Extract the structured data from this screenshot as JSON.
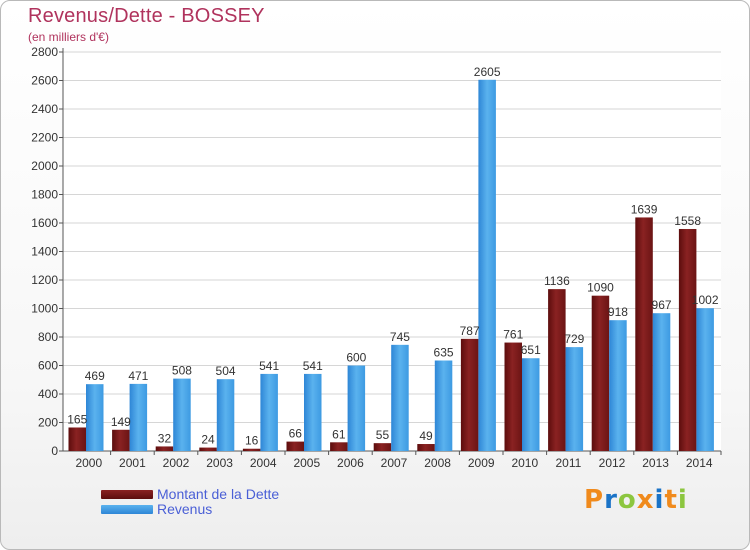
{
  "header": {
    "title": "Revenus/Dette - BOSSEY",
    "subtitle": "(en milliers d'€)"
  },
  "legend": [
    {
      "label": "Montant de la Dette",
      "color": "#7a1818"
    },
    {
      "label": "Revenus",
      "color": "#3a98e0"
    }
  ],
  "logo": {
    "text": "Proxiti",
    "letter_colors": [
      "#f08a1c",
      "#1a73c7",
      "#8cc63f",
      "#f08a1c",
      "#1a73c7",
      "#f08a1c",
      "#8cc63f"
    ]
  },
  "chart_data": {
    "type": "bar",
    "categories": [
      "2000",
      "2001",
      "2002",
      "2003",
      "2004",
      "2005",
      "2006",
      "2007",
      "2008",
      "2009",
      "2010",
      "2011",
      "2012",
      "2013",
      "2014"
    ],
    "series": [
      {
        "name": "Montant de la Dette",
        "color": "#7a1818",
        "values": [
          165,
          149,
          32,
          24,
          16,
          66,
          61,
          55,
          49,
          787,
          761,
          1136,
          1090,
          1639,
          1558
        ]
      },
      {
        "name": "Revenus",
        "color": "#3a98e0",
        "values": [
          469,
          471,
          508,
          504,
          541,
          541,
          600,
          745,
          635,
          2605,
          651,
          729,
          918,
          967,
          1002
        ]
      }
    ],
    "yticks": [
      0,
      200,
      400,
      600,
      800,
      1000,
      1200,
      1400,
      1600,
      1800,
      2000,
      2200,
      2400,
      2600,
      2800
    ],
    "ylim": [
      0,
      2800
    ],
    "grid": true,
    "legend_position": "bottom-left"
  }
}
